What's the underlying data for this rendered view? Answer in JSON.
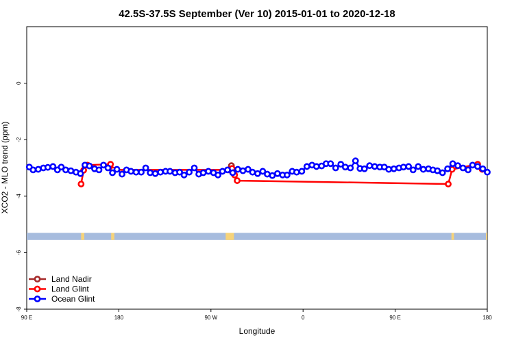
{
  "chart_data": {
    "type": "line",
    "title": "42.5S-37.5S September (Ver 10)   2015-01-01 to 2020-12-18",
    "xlabel": "Longitude",
    "ylabel": "XCO2 - MLO trend (ppm)",
    "xlim": [
      90,
      450
    ],
    "ylim": [
      -8,
      2
    ],
    "x_ticks": [
      {
        "value": 90,
        "label": "90 E"
      },
      {
        "value": 162,
        "label": "180"
      },
      {
        "value": 234,
        "label": "90 W"
      },
      {
        "value": 306,
        "label": "0"
      },
      {
        "value": 378,
        "label": "90 E"
      },
      {
        "value": 450,
        "label": "180"
      }
    ],
    "y_ticks": [
      0,
      -2,
      -4,
      -6,
      -8
    ],
    "grid": false,
    "legend_position": "bottom-left",
    "series": [
      {
        "name": "Land Nadir",
        "color": "#a52a2a",
        "points": [
          [
            250,
            -2.92
          ],
          [
            251,
            -3.05
          ]
        ]
      },
      {
        "name": "Land Glint",
        "color": "#ff0000",
        "points": [
          [
            132.5,
            -3.57
          ],
          [
            134.5,
            -3.08
          ],
          [
            137.5,
            -2.9
          ],
          [
            155.5,
            -2.87
          ],
          [
            157.5,
            -3.07
          ],
          [
            248,
            -3.07
          ],
          [
            250.5,
            -3.02
          ],
          [
            252.5,
            -3.25
          ],
          [
            254.5,
            -3.45
          ],
          [
            419.5,
            -3.57
          ],
          [
            422.5,
            -3.05
          ],
          [
            442.5,
            -2.87
          ],
          [
            446,
            -3.05
          ]
        ]
      },
      {
        "name": "Ocean Glint",
        "color": "#0000ff",
        "points": [
          [
            92,
            -2.97
          ],
          [
            95,
            -3.07
          ],
          [
            99,
            -3.05
          ],
          [
            103,
            -3.0
          ],
          [
            106.5,
            -2.98
          ],
          [
            110.5,
            -2.95
          ],
          [
            114,
            -3.07
          ],
          [
            117,
            -2.97
          ],
          [
            120.5,
            -3.07
          ],
          [
            124.5,
            -3.1
          ],
          [
            128.5,
            -3.15
          ],
          [
            132,
            -3.2
          ],
          [
            135.5,
            -2.9
          ],
          [
            139,
            -2.93
          ],
          [
            143,
            -3.03
          ],
          [
            146.5,
            -3.07
          ],
          [
            150,
            -2.9
          ],
          [
            153.5,
            -3.0
          ],
          [
            157,
            -3.17
          ],
          [
            160.5,
            -3.05
          ],
          [
            164.5,
            -3.22
          ],
          [
            168,
            -3.07
          ],
          [
            171.5,
            -3.12
          ],
          [
            175.5,
            -3.15
          ],
          [
            179.5,
            -3.15
          ],
          [
            183,
            -3.0
          ],
          [
            186.5,
            -3.17
          ],
          [
            190.5,
            -3.2
          ],
          [
            194.5,
            -3.15
          ],
          [
            198.5,
            -3.12
          ],
          [
            202,
            -3.12
          ],
          [
            206,
            -3.17
          ],
          [
            209.5,
            -3.15
          ],
          [
            213,
            -3.25
          ],
          [
            217,
            -3.15
          ],
          [
            221,
            -3.0
          ],
          [
            224.5,
            -3.22
          ],
          [
            228,
            -3.17
          ],
          [
            232,
            -3.12
          ],
          [
            236,
            -3.17
          ],
          [
            239.5,
            -3.25
          ],
          [
            243,
            -3.12
          ],
          [
            247,
            -3.07
          ],
          [
            251,
            -3.17
          ],
          [
            255,
            -3.05
          ],
          [
            259,
            -3.1
          ],
          [
            263,
            -3.05
          ],
          [
            266.5,
            -3.15
          ],
          [
            270.5,
            -3.2
          ],
          [
            274.5,
            -3.12
          ],
          [
            278,
            -3.22
          ],
          [
            282,
            -3.27
          ],
          [
            286,
            -3.2
          ],
          [
            290,
            -3.25
          ],
          [
            293.5,
            -3.25
          ],
          [
            297.5,
            -3.12
          ],
          [
            301,
            -3.15
          ],
          [
            305,
            -3.12
          ],
          [
            309,
            -2.95
          ],
          [
            313,
            -2.9
          ],
          [
            316.5,
            -2.95
          ],
          [
            320.5,
            -2.93
          ],
          [
            324,
            -2.85
          ],
          [
            327.5,
            -2.85
          ],
          [
            331.5,
            -3.0
          ],
          [
            335.5,
            -2.87
          ],
          [
            339,
            -2.97
          ],
          [
            343,
            -3.0
          ],
          [
            347,
            -2.75
          ],
          [
            350.5,
            -3.02
          ],
          [
            354,
            -3.03
          ],
          [
            358,
            -2.92
          ],
          [
            362,
            -2.95
          ],
          [
            366,
            -2.97
          ],
          [
            369.5,
            -2.97
          ],
          [
            373,
            -3.05
          ],
          [
            377,
            -3.03
          ],
          [
            381,
            -3.0
          ],
          [
            384.5,
            -2.97
          ],
          [
            388.5,
            -2.95
          ],
          [
            392,
            -3.07
          ],
          [
            396,
            -2.95
          ],
          [
            400,
            -3.05
          ],
          [
            404,
            -3.03
          ],
          [
            407.5,
            -3.07
          ],
          [
            411,
            -3.1
          ],
          [
            415,
            -3.17
          ],
          [
            419,
            -3.03
          ],
          [
            423,
            -2.85
          ],
          [
            427,
            -2.92
          ],
          [
            431,
            -3.0
          ],
          [
            435,
            -3.07
          ],
          [
            438.5,
            -2.9
          ],
          [
            442.5,
            -2.95
          ],
          [
            446.5,
            -3.03
          ],
          [
            450,
            -3.15
          ]
        ]
      }
    ],
    "band": {
      "y_range": [
        -5.55,
        -5.3
      ],
      "base_color": "#a7bcde",
      "land_color": "#f6d37a",
      "land_segments": [
        [
          132.5,
          135
        ],
        [
          156,
          158.5
        ],
        [
          245.5,
          252
        ],
        [
          422,
          424
        ],
        [
          449,
          450
        ]
      ]
    }
  }
}
